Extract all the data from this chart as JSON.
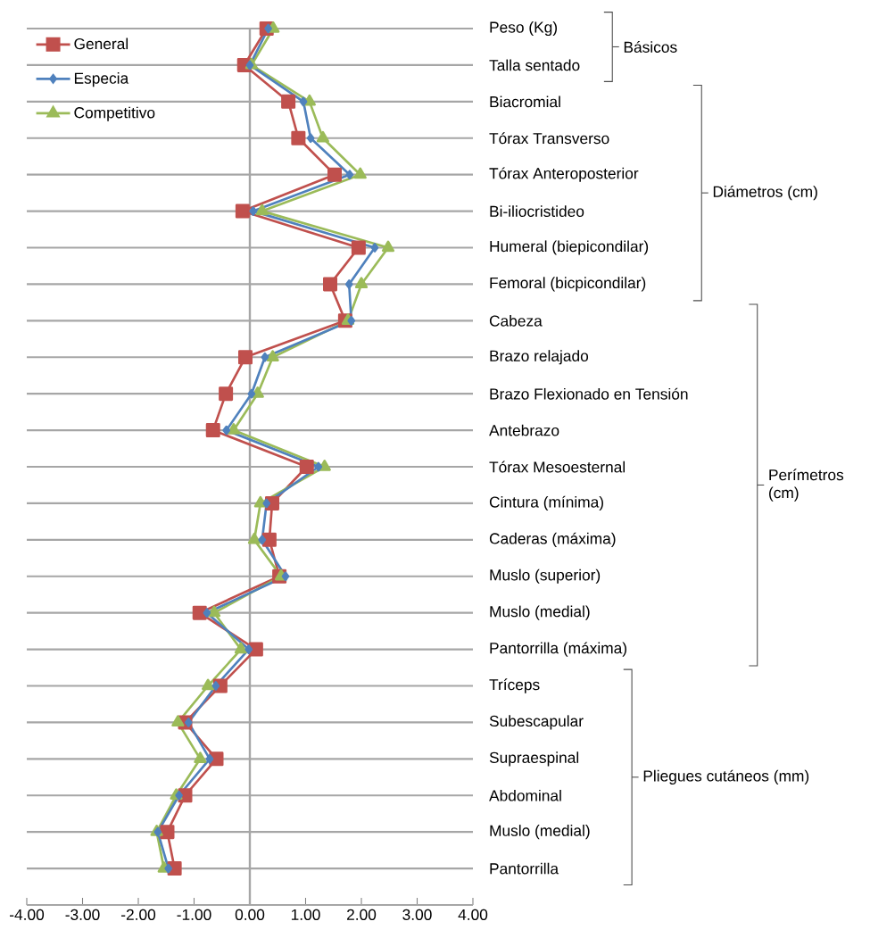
{
  "chart_data": {
    "type": "line",
    "orientation": "horizontal",
    "categories": [
      "Peso (Kg)",
      "Talla sentado",
      "Biacromial",
      "Tórax Transverso",
      "Tórax Anteroposterior",
      "Bi-iliocristideo",
      "Humeral (biepicondilar)",
      "Femoral (bicpicondilar)",
      "Cabeza",
      "Brazo relajado",
      "Brazo Flexionado en Tensión",
      "Antebrazo",
      "Tórax Mesoesternal",
      "Cintura (mínima)",
      "Caderas (máxima)",
      "Muslo (superior)",
      "Muslo (medial)",
      "Pantorrilla (máxima)",
      "Tríceps",
      "Subescapular",
      "Supraespinal",
      "Abdominal",
      "Muslo (medial)",
      "Pantorrilla"
    ],
    "series": [
      {
        "name": "General",
        "color": "#c0504d",
        "marker": "square",
        "values": [
          0.3,
          -0.1,
          0.69,
          0.87,
          1.52,
          -0.13,
          1.95,
          1.44,
          1.71,
          -0.08,
          -0.43,
          -0.66,
          1.02,
          0.4,
          0.35,
          0.53,
          -0.9,
          0.11,
          -0.53,
          -1.16,
          -0.6,
          -1.16,
          -1.48,
          -1.35
        ]
      },
      {
        "name": "Especia",
        "color": "#4f81bd",
        "marker": "diamond",
        "values": [
          0.33,
          0.0,
          0.96,
          1.09,
          1.79,
          0.06,
          2.24,
          1.78,
          1.82,
          0.27,
          0.03,
          -0.42,
          1.23,
          0.3,
          0.22,
          0.64,
          -0.77,
          -0.02,
          -0.61,
          -1.1,
          -0.72,
          -1.27,
          -1.65,
          -1.46
        ]
      },
      {
        "name": "Competitivo",
        "color": "#9bbb59",
        "marker": "triangle",
        "values": [
          0.42,
          0.03,
          1.07,
          1.31,
          1.98,
          0.22,
          2.48,
          2.0,
          1.76,
          0.41,
          0.14,
          -0.29,
          1.34,
          0.19,
          0.08,
          0.56,
          -0.64,
          -0.16,
          -0.75,
          -1.29,
          -0.89,
          -1.32,
          -1.67,
          -1.54
        ]
      }
    ],
    "xlim": [
      -4,
      4
    ],
    "xticks": [
      {
        "value": -4,
        "label": "-4.00"
      },
      {
        "value": -3,
        "label": "-3.00"
      },
      {
        "value": -2,
        "label": "-2.00"
      },
      {
        "value": -1,
        "label": "-1.00"
      },
      {
        "value": 0,
        "label": "0.00"
      },
      {
        "value": 1,
        "label": "1.00"
      },
      {
        "value": 2,
        "label": "2.00"
      },
      {
        "value": 3,
        "label": "3.00"
      },
      {
        "value": 4,
        "label": "4.00"
      }
    ],
    "ref_lines": [
      {
        "axis": "x",
        "value": 0,
        "color": "#a6a6a6"
      }
    ],
    "grid": "y",
    "legend": "top left",
    "line_style": "solid",
    "annotations": [
      "Básicos",
      "Diámetros (cm)",
      "Perímetros (cm)",
      "Pliegues cutáneos (mm)"
    ]
  }
}
